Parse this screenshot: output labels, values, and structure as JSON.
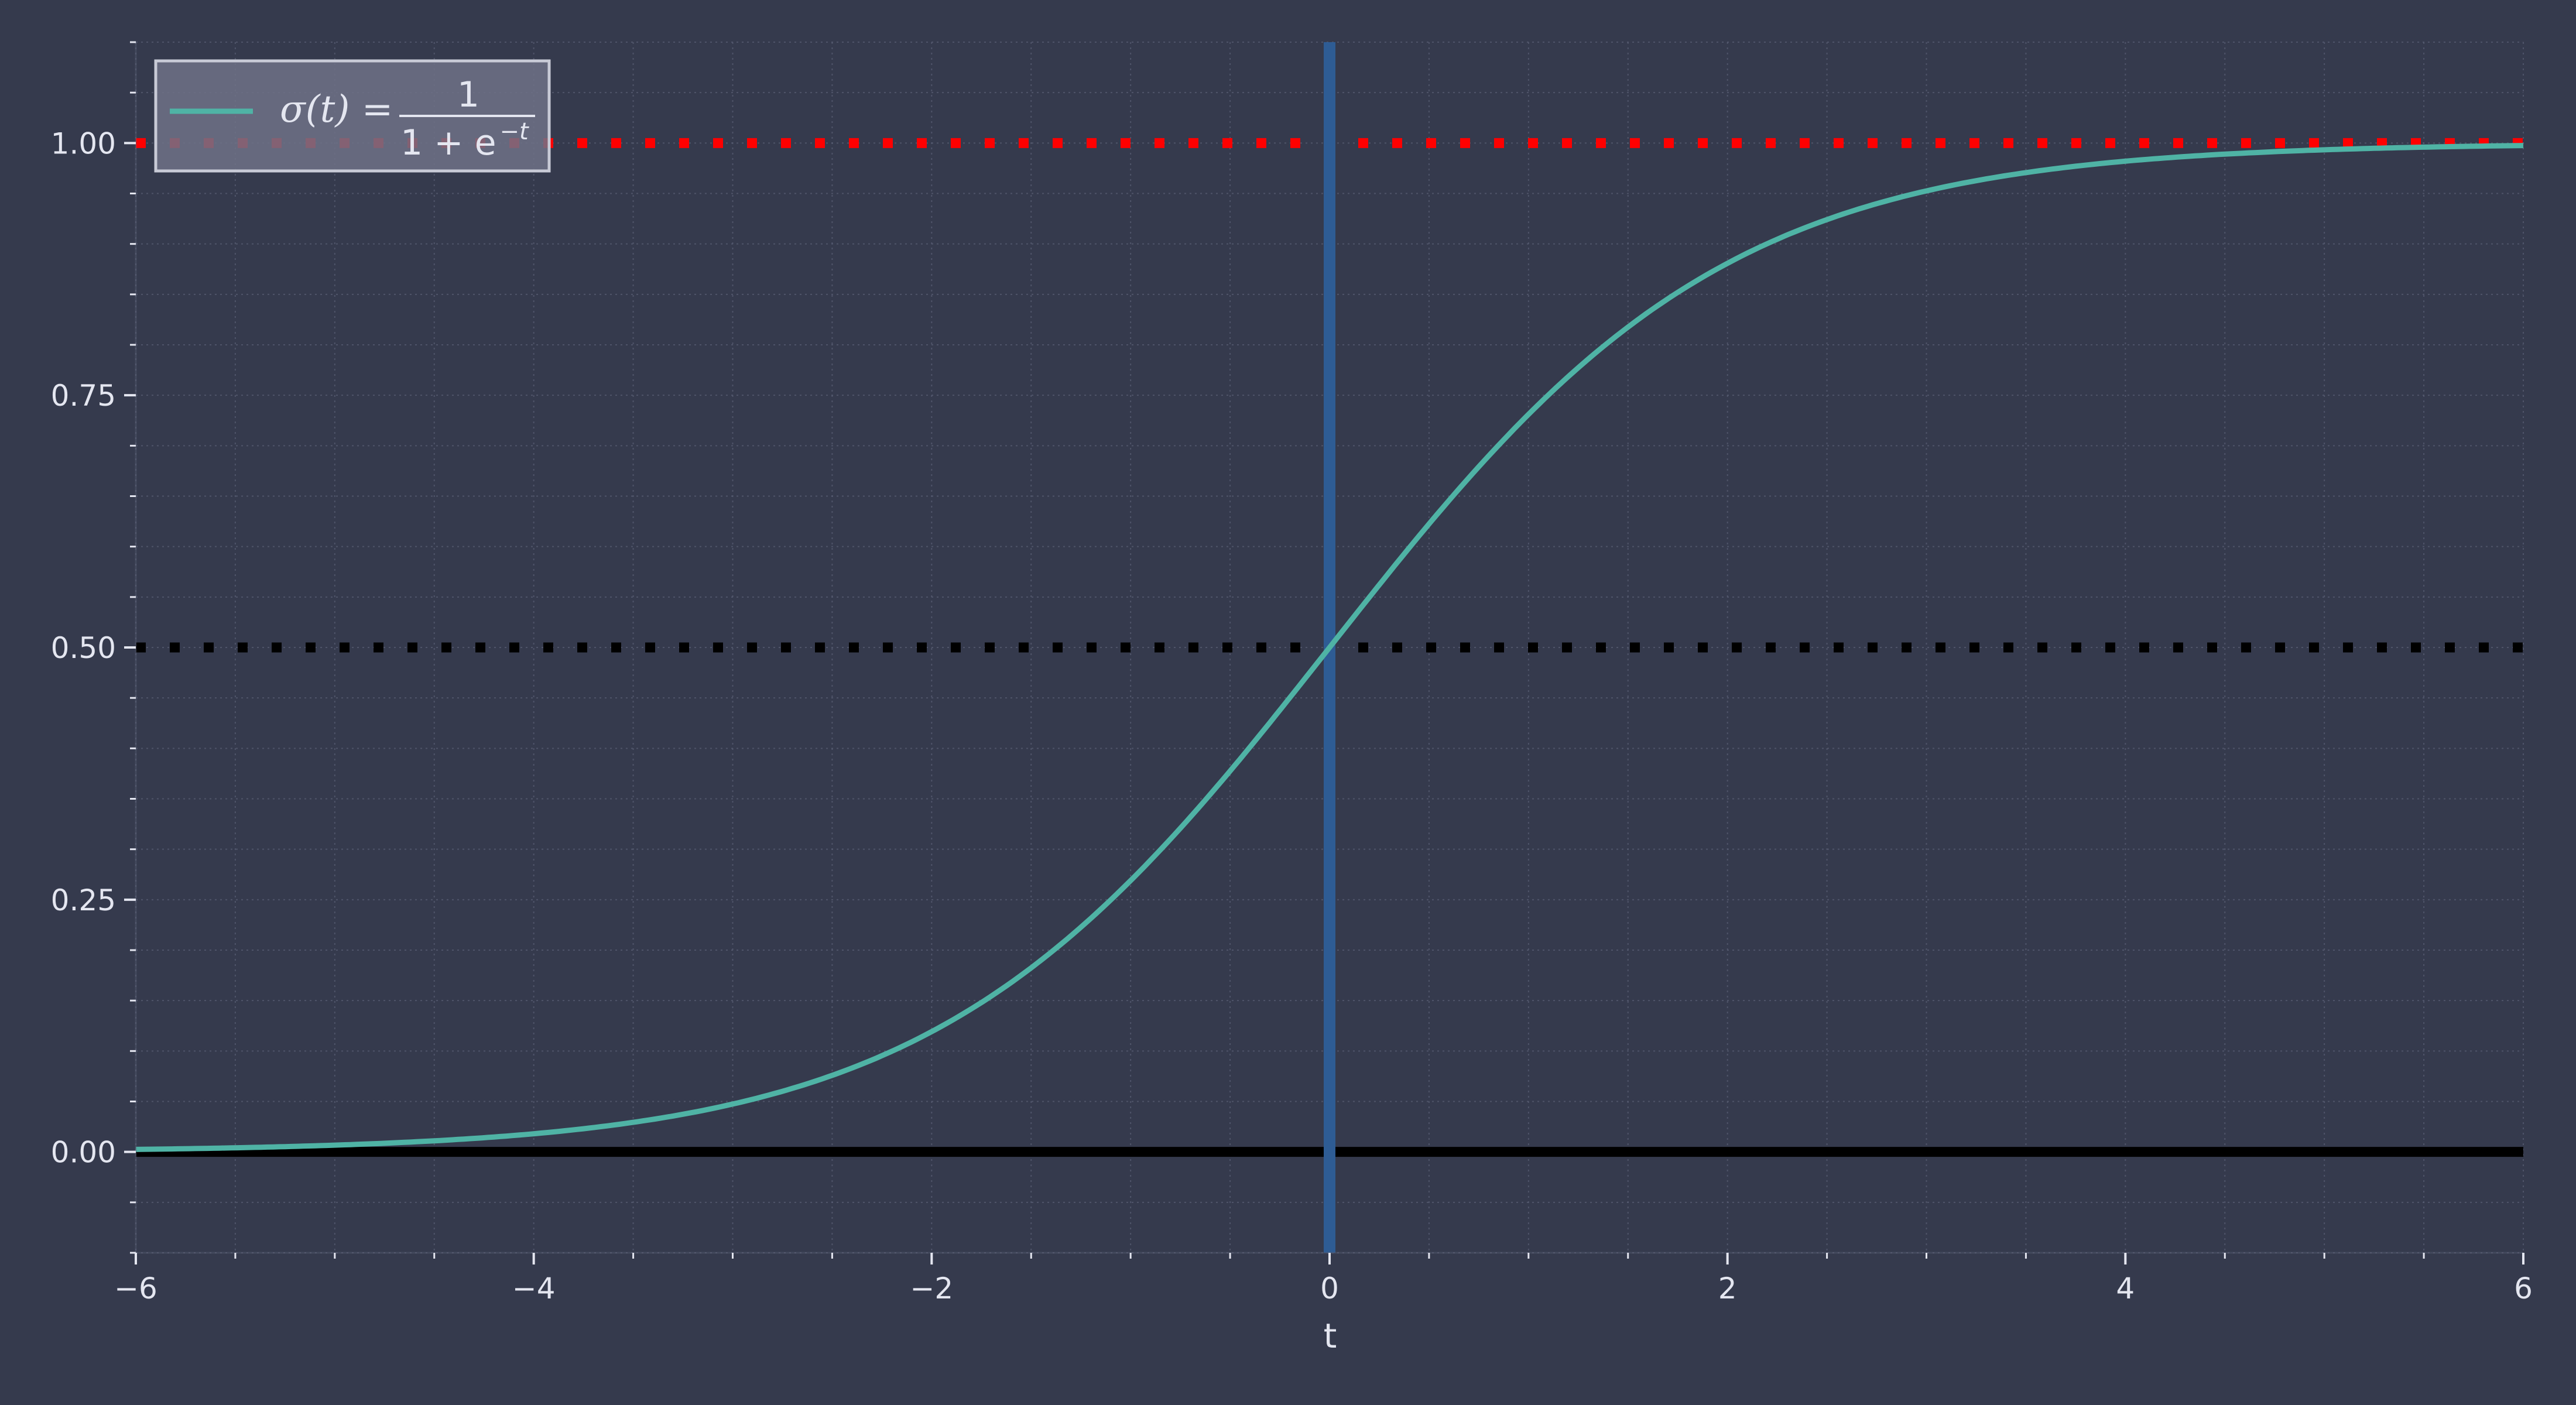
{
  "chart_data": {
    "type": "line",
    "title": "",
    "xlabel": "t",
    "ylabel": "",
    "xlim": [
      -6,
      6
    ],
    "ylim": [
      -0.1,
      1.1
    ],
    "x_ticks": [
      -6,
      -4,
      -2,
      0,
      2,
      4,
      6
    ],
    "x_tick_labels": [
      "−6",
      "−4",
      "−2",
      "0",
      "2",
      "4",
      "6"
    ],
    "x_minor_step": 0.5,
    "y_ticks": [
      0.0,
      0.25,
      0.5,
      0.75,
      1.0
    ],
    "y_tick_labels": [
      "0.00",
      "0.25",
      "0.50",
      "0.75",
      "1.00"
    ],
    "y_minor_step": 0.05,
    "grid": true,
    "legend_position": "top-left",
    "series": [
      {
        "name": "σ(t) = 1 / (1 + e^−t)",
        "function": "sigmoid",
        "x_range": [
          -6,
          6
        ],
        "x": [
          -6,
          -5,
          -4,
          -3,
          -2,
          -1,
          0,
          1,
          2,
          3,
          4,
          5,
          6
        ],
        "values": [
          0.0025,
          0.0067,
          0.018,
          0.047,
          0.119,
          0.269,
          0.5,
          0.731,
          0.881,
          0.953,
          0.982,
          0.993,
          0.9975
        ],
        "color": "#4fb3a5"
      }
    ],
    "reference_lines": [
      {
        "orientation": "horizontal",
        "value": 1.0,
        "style": "dotted",
        "color": "#ff0000"
      },
      {
        "orientation": "horizontal",
        "value": 0.5,
        "style": "dotted",
        "color": "#000000"
      },
      {
        "orientation": "horizontal",
        "value": 0.0,
        "style": "solid",
        "color": "#000000"
      },
      {
        "orientation": "vertical",
        "value": 0.0,
        "style": "solid",
        "color": "#2e5c94"
      }
    ],
    "legend": {
      "label_lhs": "σ(t) =",
      "numerator": "1",
      "denominator_base": "1 + e",
      "denominator_exponent": "−t"
    }
  },
  "colors": {
    "background": "#353a4d",
    "grid": "#5a6076",
    "text": "#e4e6f0",
    "legend_face": "#6e7287",
    "legend_edge": "#c8cad6"
  }
}
